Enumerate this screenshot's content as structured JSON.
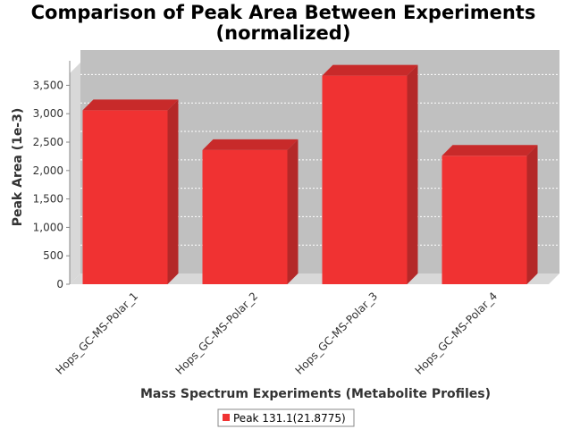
{
  "chart_data": {
    "type": "bar",
    "title_line1": "Comparison of Peak Area Between Experiments",
    "title_line2": "(normalized)",
    "xlabel": "Mass Spectrum Experiments (Metabolite Profiles)",
    "ylabel": "Peak Area (1e-3)",
    "categories": [
      "Hops_GC-MS-Polar_1",
      "Hops_GC-MS-Polar_2",
      "Hops_GC-MS-Polar_3",
      "Hops_GC-MS-Polar_4"
    ],
    "series": [
      {
        "name": "Peak 131.1(21.8775)",
        "values": [
          3060,
          2360,
          3670,
          2260
        ],
        "color": "#f03232"
      }
    ],
    "ylim": [
      0,
      3900
    ],
    "yticks": [
      0,
      500,
      1000,
      1500,
      2000,
      2500,
      3000,
      3500
    ],
    "ytick_labels": [
      "0",
      "500",
      "1,000",
      "1,500",
      "2,000",
      "2,500",
      "3,000",
      "3,500"
    ],
    "grid": true,
    "legend_position": "bottom",
    "colors": {
      "plot_background": "#c0c0c0",
      "plot_wall": "#d8d8d8",
      "bar_front": "#f03232",
      "bar_side": "#b42828",
      "bar_top": "#c82a2a"
    }
  }
}
